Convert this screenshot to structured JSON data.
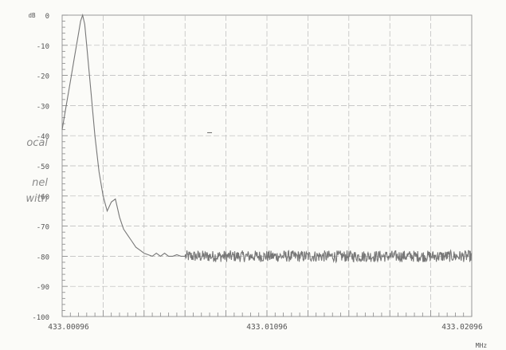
{
  "side_text": [
    "ocal",
    "nel",
    "with"
  ],
  "chart_data": {
    "type": "line",
    "title": "",
    "xlabel": "",
    "ylabel": "",
    "y_unit": "dB",
    "x_unit": "MHz",
    "xlim": [
      433.00096,
      433.02096
    ],
    "ylim": [
      -100,
      0
    ],
    "grid": true,
    "y_ticks": [
      0,
      -10,
      -20,
      -30,
      -40,
      -50,
      -60,
      -70,
      -80,
      -90,
      -100
    ],
    "y_tick_labels": [
      "0",
      "-10",
      "-20",
      "-30",
      "-40",
      "-50",
      "-60",
      "-70",
      "-80",
      "-90",
      "-100"
    ],
    "x_tick_labels": [
      {
        "value": 433.00096,
        "label": "433.00096"
      },
      {
        "value": 433.01096,
        "label": "433.01096"
      },
      {
        "value": 433.02096,
        "label": "433.02096"
      }
    ],
    "series": [
      {
        "color": "#777777",
        "x": [
          433.00096,
          433.00116,
          433.00136,
          433.00156,
          433.00176,
          433.00186,
          433.00196,
          433.00206,
          433.00216,
          433.00236,
          433.00256,
          433.00276,
          433.00296,
          433.00316,
          433.00336,
          433.00356,
          433.00366,
          433.00376,
          433.00386,
          433.00396,
          433.00416,
          433.00436,
          433.00456,
          433.00476,
          433.00496,
          433.00516,
          433.00536,
          433.00556,
          433.00576,
          433.00596,
          433.00616,
          433.00636,
          433.00656,
          433.00676,
          433.00696
        ],
        "values": [
          -38,
          -30,
          -22,
          -14,
          -6,
          -2,
          0,
          -3,
          -10,
          -25,
          -40,
          -52,
          -60,
          -65,
          -62,
          -61,
          -64,
          -67,
          -69,
          -71,
          -73,
          -75,
          -77,
          -78,
          -79,
          -79.5,
          -80,
          -79,
          -80,
          -79,
          -80,
          -80,
          -79.5,
          -80,
          -80
        ],
        "noise_floor": -80,
        "noise_amplitude": 1.2,
        "noise_until": 433.02096
      }
    ],
    "annotations": [
      {
        "type": "tick",
        "x": 433.00816,
        "y": -39
      }
    ]
  }
}
